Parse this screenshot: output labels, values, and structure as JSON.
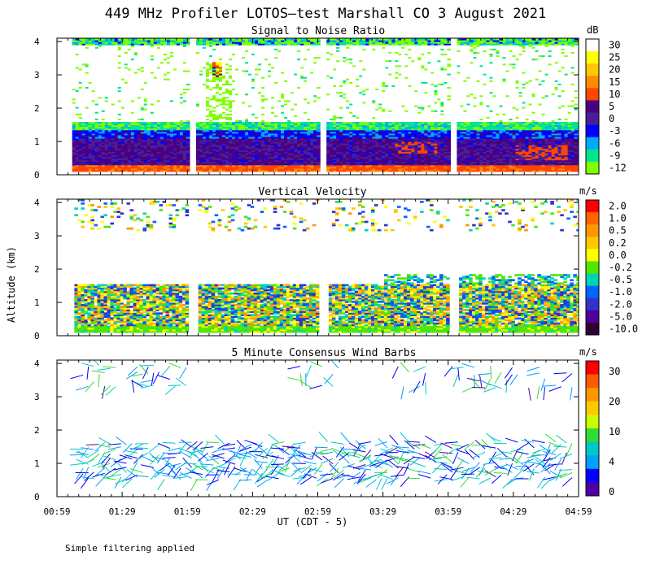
{
  "figure": {
    "title": "449 MHz Profiler LOTOS—test Marshall CO  3 August 2021",
    "ylabel": "Altitude (km)",
    "xlabel": "UT  (CDT - 5)",
    "footnote": "Simple filtering applied"
  },
  "chart_data": [
    {
      "type": "heatmap",
      "title": "Signal to Noise Ratio",
      "xlabel": "UT  (CDT - 5)",
      "ylabel": "Altitude (km)",
      "x_ticks": [
        "00:59",
        "01:29",
        "01:59",
        "02:29",
        "02:59",
        "03:29",
        "03:59",
        "04:29",
        "04:59"
      ],
      "y_ticks": [
        "0",
        "1",
        "2",
        "3",
        "4"
      ],
      "xlim": [
        0,
        240
      ],
      "ylim": [
        0,
        4.1
      ],
      "data_gaps_minutes": [
        [
          60,
          64
        ],
        [
          120,
          124
        ],
        [
          180,
          184
        ]
      ],
      "colorbar": {
        "unit": "dB",
        "labels": [
          "30",
          "25",
          "20",
          "15",
          "10",
          "5",
          "0",
          "-3",
          "-6",
          "-9",
          "-12"
        ],
        "colors": [
          "#ffffff",
          "#ffff00",
          "#ffc800",
          "#ff8c00",
          "#ff4500",
          "#4b0082",
          "#4b1e96",
          "#0000ff",
          "#00aaff",
          "#00e68c",
          "#7fff00"
        ]
      },
      "layers": [
        {
          "from_km": 0.1,
          "to_km": 0.3,
          "value_db": 15
        },
        {
          "from_km": 0.3,
          "to_km": 1.1,
          "value_db": 4
        },
        {
          "from_km": 1.1,
          "to_km": 1.5,
          "value_db": -4
        },
        {
          "from_km": 1.5,
          "to_km": 3.9,
          "value_db": 30
        },
        {
          "from_km": 3.9,
          "to_km": 4.1,
          "value_db": -10
        }
      ]
    },
    {
      "type": "heatmap",
      "title": "Vertical Velocity",
      "xlabel": "UT  (CDT - 5)",
      "ylabel": "Altitude (km)",
      "x_ticks": [
        "00:59",
        "01:29",
        "01:59",
        "02:29",
        "02:59",
        "03:29",
        "03:59",
        "04:29",
        "04:59"
      ],
      "y_ticks": [
        "0",
        "1",
        "2",
        "3",
        "4"
      ],
      "xlim": [
        0,
        240
      ],
      "ylim": [
        0,
        4.1
      ],
      "colorbar": {
        "unit": "m/s",
        "labels": [
          "2.0",
          "1.0",
          "0.5",
          "0.2",
          "0.0",
          "-0.2",
          "-0.5",
          "-1.0",
          "-2.0",
          "-5.0",
          "-10.0"
        ],
        "colors": [
          "#ff0000",
          "#ff6400",
          "#ff9600",
          "#ffc800",
          "#ffff00",
          "#50e600",
          "#00d2b4",
          "#0064ff",
          "#3232c8",
          "#500096",
          "#320032"
        ]
      },
      "layers": [
        {
          "from_km": 0.1,
          "to_km": 0.3,
          "value_ms": -0.2
        },
        {
          "from_km": 0.4,
          "to_km": 1.8,
          "value_ms": -0.5
        }
      ]
    },
    {
      "type": "scatter",
      "title": "5 Minute Consensus Wind Barbs",
      "xlabel": "UT  (CDT - 5)",
      "ylabel": "Altitude (km)",
      "x_ticks": [
        "00:59",
        "01:29",
        "01:59",
        "02:29",
        "02:59",
        "03:29",
        "03:59",
        "04:29",
        "04:59"
      ],
      "y_ticks": [
        "0",
        "1",
        "2",
        "3",
        "4"
      ],
      "xlim": [
        0,
        240
      ],
      "ylim": [
        0,
        4.1
      ],
      "colorbar": {
        "unit": "m/s",
        "labels": [
          "30",
          "20",
          "10",
          "4",
          "0"
        ],
        "colors": [
          "#ff0000",
          "#ff5a00",
          "#ff9600",
          "#ffc800",
          "#c8ff00",
          "#32dc32",
          "#00c8c8",
          "#00a0ff",
          "#0000ff",
          "#5000a0"
        ]
      },
      "speed_range_ms": [
        0,
        34
      ]
    }
  ]
}
